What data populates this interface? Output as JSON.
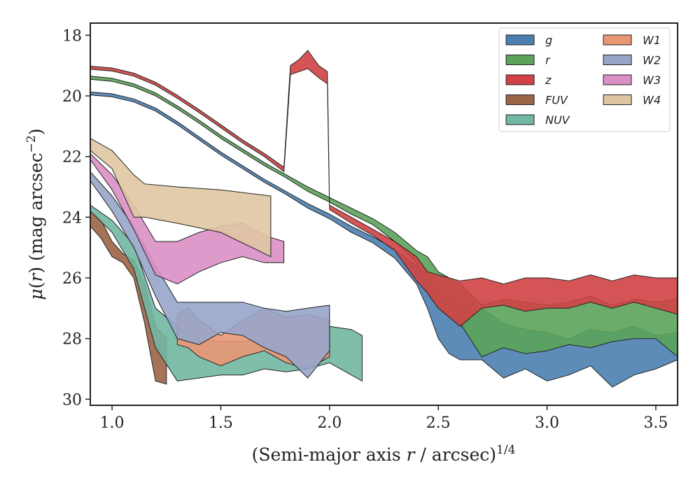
{
  "chart_data": {
    "type": "area",
    "xlabel": "(Semi-major axis r / arcsec)^1/4",
    "ylabel": "μ(r) (mag arcsec^-2)",
    "xlim": [
      0.9,
      3.6
    ],
    "ylim": [
      30.2,
      17.6
    ],
    "y_inverted": true,
    "x_ticks": [
      "1.0",
      "1.5",
      "2.0",
      "2.5",
      "3.0",
      "3.5"
    ],
    "y_ticks": [
      "18",
      "20",
      "22",
      "24",
      "26",
      "28",
      "30"
    ],
    "grid": false,
    "legend": {
      "position": "top-right",
      "columns": 2
    },
    "series": [
      {
        "name": "g",
        "color": "#4c7fb0",
        "points": [
          [
            0.9,
            19.87,
            19.97
          ],
          [
            1.0,
            19.93,
            20.03
          ],
          [
            1.1,
            20.1,
            20.2
          ],
          [
            1.2,
            20.4,
            20.5
          ],
          [
            1.3,
            20.85,
            20.95
          ],
          [
            1.4,
            21.35,
            21.45
          ],
          [
            1.5,
            21.85,
            21.95
          ],
          [
            1.6,
            22.3,
            22.4
          ],
          [
            1.7,
            22.75,
            22.85
          ],
          [
            1.8,
            23.15,
            23.25
          ],
          [
            1.9,
            23.55,
            23.7
          ],
          [
            2.0,
            23.9,
            24.05
          ],
          [
            2.1,
            24.3,
            24.5
          ],
          [
            2.2,
            24.65,
            24.85
          ],
          [
            2.3,
            25.05,
            25.35
          ],
          [
            2.4,
            25.6,
            26.2
          ],
          [
            2.45,
            25.9,
            27.0
          ],
          [
            2.5,
            26.3,
            28.0
          ],
          [
            2.55,
            26.5,
            28.5
          ],
          [
            2.6,
            26.8,
            28.7
          ],
          [
            2.7,
            27.0,
            28.7
          ],
          [
            2.8,
            27.5,
            29.3
          ],
          [
            2.9,
            27.7,
            29.0
          ],
          [
            3.0,
            27.8,
            29.4
          ],
          [
            3.1,
            28.0,
            29.2
          ],
          [
            3.2,
            27.7,
            28.9
          ],
          [
            3.3,
            27.8,
            29.6
          ],
          [
            3.4,
            27.6,
            29.2
          ],
          [
            3.5,
            27.9,
            29.0
          ],
          [
            3.6,
            27.8,
            28.7
          ]
        ]
      },
      {
        "name": "r",
        "color": "#5ba35a",
        "points": [
          [
            0.9,
            19.35,
            19.45
          ],
          [
            1.0,
            19.42,
            19.52
          ],
          [
            1.1,
            19.6,
            19.7
          ],
          [
            1.2,
            19.9,
            20.0
          ],
          [
            1.3,
            20.33,
            20.43
          ],
          [
            1.4,
            20.8,
            20.9
          ],
          [
            1.5,
            21.3,
            21.4
          ],
          [
            1.6,
            21.75,
            21.85
          ],
          [
            1.7,
            22.2,
            22.3
          ],
          [
            1.8,
            22.6,
            22.7
          ],
          [
            1.9,
            23.0,
            23.15
          ],
          [
            2.0,
            23.35,
            23.5
          ],
          [
            2.1,
            23.7,
            23.9
          ],
          [
            2.2,
            24.05,
            24.25
          ],
          [
            2.3,
            24.5,
            24.8
          ],
          [
            2.4,
            25.1,
            25.5
          ],
          [
            2.45,
            25.3,
            26.5
          ],
          [
            2.5,
            25.8,
            27.0
          ],
          [
            2.6,
            26.2,
            27.5
          ],
          [
            2.7,
            26.9,
            28.6
          ],
          [
            2.8,
            26.7,
            28.3
          ],
          [
            2.9,
            26.8,
            28.5
          ],
          [
            3.0,
            26.9,
            28.4
          ],
          [
            3.1,
            26.8,
            28.2
          ],
          [
            3.2,
            26.6,
            28.3
          ],
          [
            3.3,
            26.9,
            28.1
          ],
          [
            3.4,
            26.7,
            28.0
          ],
          [
            3.5,
            26.8,
            28.0
          ],
          [
            3.6,
            26.7,
            28.6
          ]
        ]
      },
      {
        "name": "z",
        "color": "#d04245",
        "points": [
          [
            0.9,
            19.02,
            19.12
          ],
          [
            1.0,
            19.08,
            19.18
          ],
          [
            1.1,
            19.25,
            19.35
          ],
          [
            1.2,
            19.55,
            19.65
          ],
          [
            1.3,
            19.98,
            20.08
          ],
          [
            1.4,
            20.45,
            20.55
          ],
          [
            1.5,
            20.95,
            21.05
          ],
          [
            1.6,
            21.45,
            21.55
          ],
          [
            1.7,
            21.9,
            22.0
          ],
          [
            1.79,
            22.35,
            22.5
          ],
          [
            1.82,
            19.0,
            19.3
          ],
          [
            1.86,
            18.8,
            19.2
          ],
          [
            1.9,
            18.5,
            19.1
          ],
          [
            1.95,
            19.0,
            19.4
          ],
          [
            1.99,
            19.2,
            19.6
          ],
          [
            2.0,
            23.6,
            23.75
          ],
          [
            2.1,
            24.0,
            24.2
          ],
          [
            2.2,
            24.4,
            24.6
          ],
          [
            2.3,
            24.8,
            25.1
          ],
          [
            2.4,
            25.3,
            26.1
          ],
          [
            2.45,
            25.8,
            26.5
          ],
          [
            2.5,
            25.9,
            27.0
          ],
          [
            2.6,
            26.1,
            27.6
          ],
          [
            2.7,
            26.0,
            27.0
          ],
          [
            2.8,
            26.2,
            26.9
          ],
          [
            2.9,
            26.0,
            27.1
          ],
          [
            3.0,
            26.0,
            27.0
          ],
          [
            3.1,
            26.1,
            27.0
          ],
          [
            3.2,
            25.9,
            26.8
          ],
          [
            3.3,
            26.1,
            27.0
          ],
          [
            3.4,
            25.9,
            26.8
          ],
          [
            3.5,
            26.0,
            27.0
          ],
          [
            3.6,
            26.0,
            27.2
          ]
        ]
      },
      {
        "name": "FUV",
        "color": "#9c6446",
        "points": [
          [
            0.9,
            23.8,
            24.3
          ],
          [
            0.95,
            24.1,
            24.7
          ],
          [
            1.0,
            24.8,
            25.3
          ],
          [
            1.05,
            25.2,
            25.5
          ],
          [
            1.1,
            25.4,
            26.0
          ],
          [
            1.15,
            26.2,
            27.5
          ],
          [
            1.2,
            27.6,
            29.4
          ],
          [
            1.25,
            28.0,
            29.5
          ]
        ]
      },
      {
        "name": "NUV",
        "color": "#72b7a3",
        "points": [
          [
            0.9,
            23.6,
            23.8
          ],
          [
            1.0,
            24.1,
            24.5
          ],
          [
            1.1,
            24.9,
            25.7
          ],
          [
            1.2,
            27.0,
            28.3
          ],
          [
            1.3,
            27.6,
            29.4
          ],
          [
            1.4,
            28.0,
            29.3
          ],
          [
            1.5,
            28.1,
            29.2
          ],
          [
            1.6,
            28.1,
            29.2
          ],
          [
            1.7,
            28.0,
            29.0
          ],
          [
            1.8,
            28.0,
            29.1
          ],
          [
            1.9,
            27.9,
            29.0
          ],
          [
            2.0,
            27.6,
            28.8
          ],
          [
            2.1,
            27.7,
            29.2
          ],
          [
            2.15,
            27.9,
            29.4
          ]
        ]
      },
      {
        "name": "W1",
        "color": "#e99674",
        "points": [
          [
            1.3,
            27.2,
            28.2
          ],
          [
            1.35,
            27.0,
            28.3
          ],
          [
            1.4,
            27.4,
            28.6
          ],
          [
            1.5,
            27.9,
            28.9
          ],
          [
            1.6,
            27.4,
            28.6
          ],
          [
            1.7,
            27.0,
            28.4
          ],
          [
            1.8,
            27.3,
            28.8
          ],
          [
            1.9,
            27.2,
            29.0
          ],
          [
            2.0,
            27.4,
            28.6
          ]
        ]
      },
      {
        "name": "W2",
        "color": "#97a5c9",
        "points": [
          [
            0.9,
            22.5,
            22.8
          ],
          [
            1.0,
            23.3,
            23.8
          ],
          [
            1.1,
            24.3,
            25.0
          ],
          [
            1.2,
            25.6,
            26.6
          ],
          [
            1.3,
            26.8,
            28.0
          ],
          [
            1.4,
            26.8,
            28.2
          ],
          [
            1.5,
            26.8,
            27.8
          ],
          [
            1.6,
            26.8,
            27.9
          ],
          [
            1.7,
            27.0,
            28.3
          ],
          [
            1.8,
            27.1,
            28.6
          ],
          [
            1.9,
            27.0,
            29.3
          ],
          [
            2.0,
            26.9,
            28.4
          ]
        ]
      },
      {
        "name": "W3",
        "color": "#da8fc5",
        "points": [
          [
            0.9,
            21.9,
            22.1
          ],
          [
            1.0,
            22.6,
            23.1
          ],
          [
            1.1,
            23.6,
            24.4
          ],
          [
            1.2,
            24.8,
            25.9
          ],
          [
            1.3,
            24.8,
            26.2
          ],
          [
            1.4,
            24.5,
            25.8
          ],
          [
            1.5,
            24.3,
            25.5
          ],
          [
            1.6,
            24.2,
            25.3
          ],
          [
            1.7,
            24.6,
            25.5
          ],
          [
            1.79,
            24.8,
            25.5
          ]
        ]
      },
      {
        "name": "W4",
        "color": "#dfc6a3",
        "points": [
          [
            0.9,
            21.4,
            21.8
          ],
          [
            1.0,
            21.8,
            22.4
          ],
          [
            1.1,
            22.6,
            24.0
          ],
          [
            1.15,
            22.9,
            24.0
          ],
          [
            1.3,
            23.0,
            24.2
          ],
          [
            1.5,
            23.1,
            24.5
          ],
          [
            1.73,
            23.3,
            25.3
          ]
        ]
      }
    ]
  }
}
